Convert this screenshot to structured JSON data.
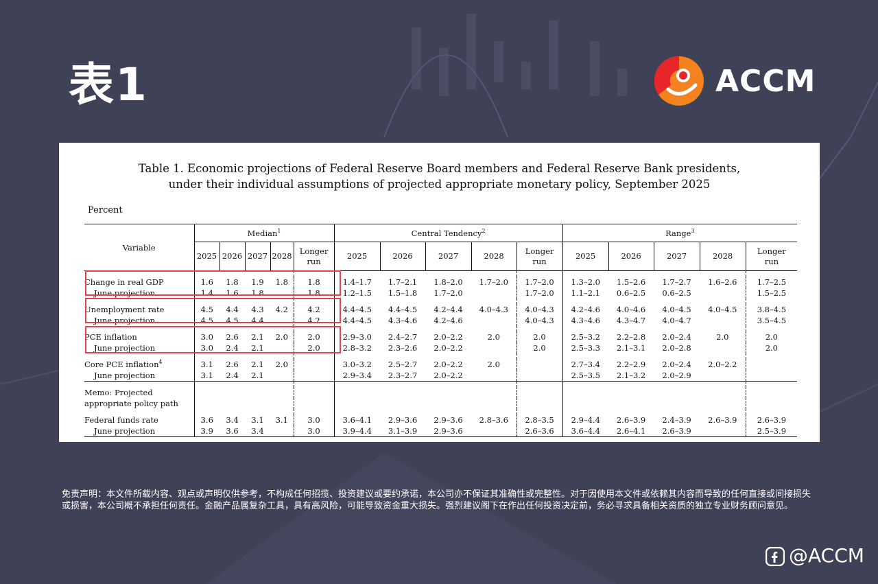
{
  "page_title": "表1",
  "brand": {
    "name": "ACCM",
    "handle": "@ACCM",
    "colors": {
      "orange": "#f4821f",
      "red": "#e8252b"
    }
  },
  "table": {
    "title_line1": "Table 1. Economic projections of Federal Reserve Board members and Federal Reserve Bank presidents,",
    "title_line2": "under their individual assumptions of projected appropriate monetary policy, September 2025",
    "unit": "Percent",
    "variable_header": "Variable",
    "groups": [
      {
        "label": "Median",
        "note": "1"
      },
      {
        "label": "Central Tendency",
        "note": "2"
      },
      {
        "label": "Range",
        "note": "3"
      }
    ],
    "years": [
      "2025",
      "2026",
      "2027",
      "2028"
    ],
    "longer_run_line1": "Longer",
    "longer_run_line2": "run",
    "memo_line1": "Memo: Projected",
    "memo_line2": "appropriate policy path",
    "rows": [
      {
        "label": "Change in real GDP",
        "values": [
          "1.6",
          "1.8",
          "1.9",
          "1.8",
          "1.8",
          "1.4–1.7",
          "1.7–2.1",
          "1.8–2.0",
          "1.7–2.0",
          "1.7–2.0",
          "1.3–2.0",
          "1.5–2.6",
          "1.7–2.7",
          "1.6–2.6",
          "1.7–2.5"
        ]
      },
      {
        "label": "June projection",
        "values": [
          "1.4",
          "1.6",
          "1.8",
          "",
          "1.8",
          "1.2–1.5",
          "1.5–1.8",
          "1.7–2.0",
          "",
          "1.7–2.0",
          "1.1–2.1",
          "0.6–2.5",
          "0.6–2.5",
          "",
          "1.5–2.5"
        ]
      },
      {
        "label": "Unemployment rate",
        "values": [
          "4.5",
          "4.4",
          "4.3",
          "4.2",
          "4.2",
          "4.4–4.5",
          "4.4–4.5",
          "4.2–4.4",
          "4.0–4.3",
          "4.0–4.3",
          "4.2–4.6",
          "4.0–4.6",
          "4.0–4.5",
          "4.0–4.5",
          "3.8–4.5"
        ]
      },
      {
        "label": "June projection",
        "values": [
          "4.5",
          "4.5",
          "4.4",
          "",
          "4.2",
          "4.4–4.5",
          "4.3–4.6",
          "4.2–4.6",
          "",
          "4.0–4.3",
          "4.3–4.6",
          "4.3–4.7",
          "4.0–4.7",
          "",
          "3.5–4.5"
        ]
      },
      {
        "label": "PCE inflation",
        "values": [
          "3.0",
          "2.6",
          "2.1",
          "2.0",
          "2.0",
          "2.9–3.0",
          "2.4–2.7",
          "2.0–2.2",
          "2.0",
          "2.0",
          "2.5–3.2",
          "2.2–2.8",
          "2.0–2.4",
          "2.0",
          "2.0"
        ]
      },
      {
        "label": "June projection",
        "values": [
          "3.0",
          "2.4",
          "2.1",
          "",
          "2.0",
          "2.8–3.2",
          "2.3–2.6",
          "2.0–2.2",
          "",
          "2.0",
          "2.5–3.3",
          "2.1–3.1",
          "2.0–2.8",
          "",
          "2.0"
        ]
      },
      {
        "label": "Core PCE inflation",
        "note": "4",
        "values": [
          "3.1",
          "2.6",
          "2.1",
          "2.0",
          "",
          "3.0–3.2",
          "2.5–2.7",
          "2.0–2.2",
          "2.0",
          "",
          "2.7–3.4",
          "2.2–2.9",
          "2.0–2.4",
          "2.0–2.2",
          ""
        ]
      },
      {
        "label": "June projection",
        "values": [
          "3.1",
          "2.4",
          "2.1",
          "",
          "",
          "2.9–3.4",
          "2.3–2.7",
          "2.0–2.2",
          "",
          "",
          "2.5–3.5",
          "2.1–3.2",
          "2.0–2.9",
          "",
          ""
        ]
      },
      {
        "label": "Federal funds rate",
        "values": [
          "3.6",
          "3.4",
          "3.1",
          "3.1",
          "3.0",
          "3.6–4.1",
          "2.9–3.6",
          "2.9–3.6",
          "2.8–3.6",
          "2.8–3.5",
          "2.9–4.4",
          "2.6–3.9",
          "2.4–3.9",
          "2.6–3.9",
          "2.6–3.9"
        ]
      },
      {
        "label": "June projection",
        "values": [
          "3.9",
          "3.6",
          "3.4",
          "",
          "3.0",
          "3.9–4.4",
          "3.1–3.9",
          "2.9–3.6",
          "",
          "2.6–3.6",
          "3.6–4.4",
          "2.6–4.1",
          "2.6–3.9",
          "",
          "2.5–3.9"
        ]
      }
    ]
  },
  "disclaimer": "免责声明：本文件所载内容、观点或声明仅供参考，不构成任何招揽、投资建议或要约承诺，本公司亦不保证其准确性或完整性。对于因使用本文件或依赖其内容而导致的任何直接或间接损失或损害，本公司概不承担任何责任。金融产品属复杂工具，具有高风险，可能导致资金重大损失。强烈建议阁下在作出任何投资决定前，务必寻求具备相关资质的独立专业财务顾问意见。"
}
